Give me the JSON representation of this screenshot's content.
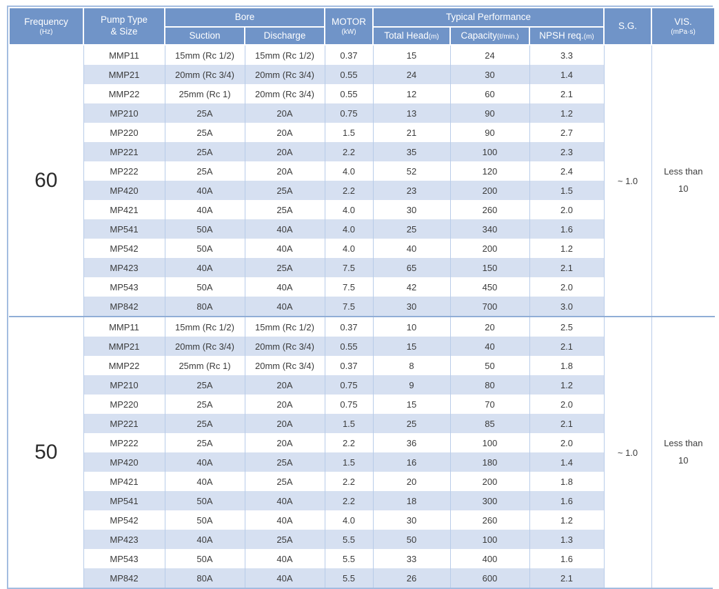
{
  "colors": {
    "header_bg": "#7094c8",
    "stripe_bg": "#d6e0f1",
    "grid_line": "#b7cbe8",
    "outer_border": "#a3bce0",
    "section_divider": "#8fadd6",
    "text": "#3a3a3a"
  },
  "header": {
    "frequency": "Frequency",
    "frequency_unit": "(Hz)",
    "pump_type_line1": "Pump Type",
    "pump_type_line2": "& Size",
    "bore": "Bore",
    "suction": "Suction",
    "discharge": "Discharge",
    "motor": "MOTOR",
    "motor_unit": "(kW)",
    "typical_performance": "Typical Performance",
    "total_head": "Total Head",
    "total_head_unit": "(m)",
    "capacity": "Capacity",
    "capacity_unit": "(ℓ/min.)",
    "npsh": "NPSH req.",
    "npsh_unit": "(m)",
    "sg": "S.G.",
    "vis": "VIS.",
    "vis_unit": "(mPa·s)"
  },
  "sections": [
    {
      "id": "60hz",
      "frequency": "60",
      "sg": "~ 1.0",
      "vis": [
        "Less than",
        "10"
      ],
      "rows": [
        [
          "MMP11",
          "15mm (Rc 1/2)",
          "15mm (Rc 1/2)",
          "0.37",
          "15",
          "24",
          "3.3"
        ],
        [
          "MMP21",
          "20mm (Rc 3/4)",
          "20mm (Rc 3/4)",
          "0.55",
          "24",
          "30",
          "1.4"
        ],
        [
          "MMP22",
          "25mm (Rc 1)",
          "20mm (Rc 3/4)",
          "0.55",
          "12",
          "60",
          "2.1"
        ],
        [
          "MP210",
          "25A",
          "20A",
          "0.75",
          "13",
          "90",
          "1.2"
        ],
        [
          "MP220",
          "25A",
          "20A",
          "1.5",
          "21",
          "90",
          "2.7"
        ],
        [
          "MP221",
          "25A",
          "20A",
          "2.2",
          "35",
          "100",
          "2.3"
        ],
        [
          "MP222",
          "25A",
          "20A",
          "4.0",
          "52",
          "120",
          "2.4"
        ],
        [
          "MP420",
          "40A",
          "25A",
          "2.2",
          "23",
          "200",
          "1.5"
        ],
        [
          "MP421",
          "40A",
          "25A",
          "4.0",
          "30",
          "260",
          "2.0"
        ],
        [
          "MP541",
          "50A",
          "40A",
          "4.0",
          "25",
          "340",
          "1.6"
        ],
        [
          "MP542",
          "50A",
          "40A",
          "4.0",
          "40",
          "200",
          "1.2"
        ],
        [
          "MP423",
          "40A",
          "25A",
          "7.5",
          "65",
          "150",
          "2.1"
        ],
        [
          "MP543",
          "50A",
          "40A",
          "7.5",
          "42",
          "450",
          "2.0"
        ],
        [
          "MP842",
          "80A",
          "40A",
          "7.5",
          "30",
          "700",
          "3.0"
        ]
      ]
    },
    {
      "id": "50hz",
      "frequency": "50",
      "sg": "~ 1.0",
      "vis": [
        "Less than",
        "10"
      ],
      "rows": [
        [
          "MMP11",
          "15mm (Rc 1/2)",
          "15mm (Rc 1/2)",
          "0.37",
          "10",
          "20",
          "2.5"
        ],
        [
          "MMP21",
          "20mm (Rc 3/4)",
          "20mm (Rc 3/4)",
          "0.55",
          "15",
          "40",
          "2.1"
        ],
        [
          "MMP22",
          "25mm (Rc 1)",
          "20mm (Rc 3/4)",
          "0.37",
          "8",
          "50",
          "1.8"
        ],
        [
          "MP210",
          "25A",
          "20A",
          "0.75",
          "9",
          "80",
          "1.2"
        ],
        [
          "MP220",
          "25A",
          "20A",
          "0.75",
          "15",
          "70",
          "2.0"
        ],
        [
          "MP221",
          "25A",
          "20A",
          "1.5",
          "25",
          "85",
          "2.1"
        ],
        [
          "MP222",
          "25A",
          "20A",
          "2.2",
          "36",
          "100",
          "2.0"
        ],
        [
          "MP420",
          "40A",
          "25A",
          "1.5",
          "16",
          "180",
          "1.4"
        ],
        [
          "MP421",
          "40A",
          "25A",
          "2.2",
          "20",
          "200",
          "1.8"
        ],
        [
          "MP541",
          "50A",
          "40A",
          "2.2",
          "18",
          "300",
          "1.6"
        ],
        [
          "MP542",
          "50A",
          "40A",
          "4.0",
          "30",
          "260",
          "1.2"
        ],
        [
          "MP423",
          "40A",
          "25A",
          "5.5",
          "50",
          "100",
          "1.3"
        ],
        [
          "MP543",
          "50A",
          "40A",
          "5.5",
          "33",
          "400",
          "1.6"
        ],
        [
          "MP842",
          "80A",
          "40A",
          "5.5",
          "26",
          "600",
          "2.1"
        ]
      ]
    }
  ]
}
